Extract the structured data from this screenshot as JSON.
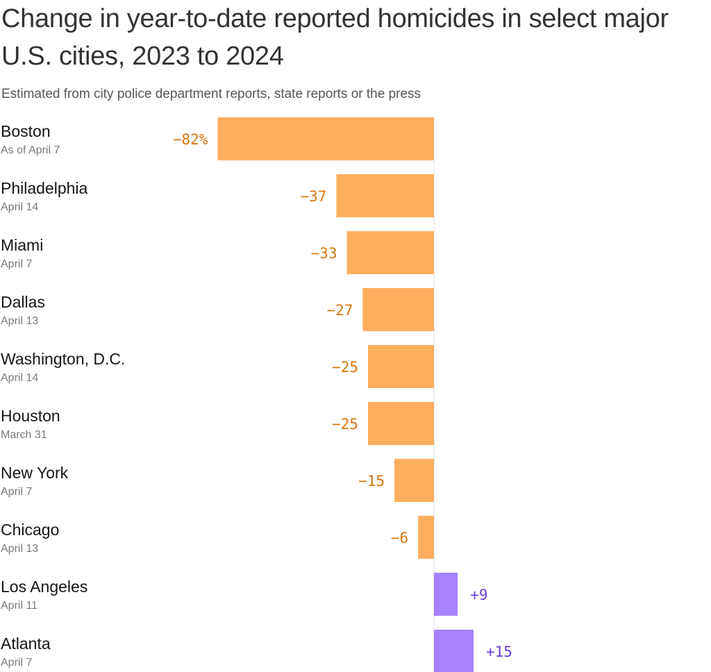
{
  "title": "Change in year-to-date reported homicides in select major U.S. cities, 2023 to 2024",
  "subtitle": "Estimated from city police department reports, state reports or the press",
  "colors": {
    "negative": "#FFAE5F",
    "positive": "#A682FF",
    "negative_text": "#D9760E",
    "positive_text": "#6B3FD6",
    "axis": "#dddddd"
  },
  "chart_data": {
    "type": "bar",
    "orientation": "horizontal",
    "categories": [
      "Boston",
      "Philadelphia",
      "Miami",
      "Dallas",
      "Washington, D.C.",
      "Houston",
      "New York",
      "Chicago",
      "Los Angeles",
      "Atlanta"
    ],
    "dates": [
      "As of April 7",
      "April 14",
      "April 7",
      "April 13",
      "April 14",
      "March 31",
      "April 7",
      "April 13",
      "April 11",
      "April 7"
    ],
    "values": [
      -82,
      -37,
      -33,
      -27,
      -25,
      -25,
      -15,
      -6,
      9,
      15
    ],
    "value_labels": [
      "−82%",
      "−37",
      "−33",
      "−27",
      "−25",
      "−25",
      "−15",
      "−6",
      "+9",
      "+15"
    ],
    "unit": "%"
  }
}
